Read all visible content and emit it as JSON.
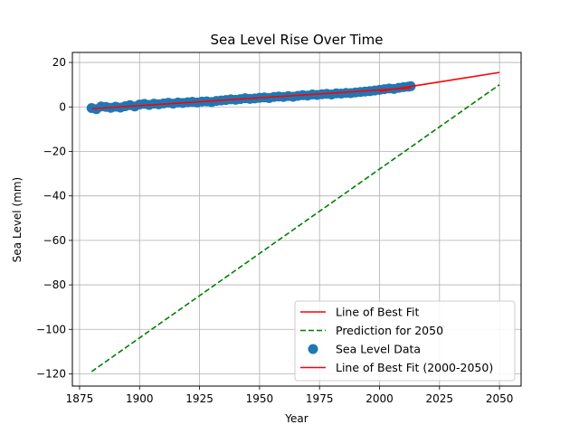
{
  "chart_data": {
    "type": "scatter",
    "title": "Sea Level Rise Over Time",
    "xlabel": "Year",
    "ylabel": "Sea Level (mm)",
    "xlim": [
      1872,
      2059
    ],
    "ylim": [
      -125.5,
      24.5
    ],
    "x_ticks": [
      1875,
      1900,
      1925,
      1950,
      1975,
      2000,
      2025,
      2050
    ],
    "y_ticks": [
      20,
      0,
      -20,
      -40,
      -60,
      -80,
      -100,
      -120
    ],
    "grid": true,
    "legend_position": "lower-right",
    "series": [
      {
        "name": "Line of Best Fit",
        "kind": "line",
        "color": "#ff0000",
        "style": "solid",
        "x": [
          1880,
          2013
        ],
        "y": [
          -0.8,
          8.5
        ]
      },
      {
        "name": "Prediction for 2050",
        "kind": "line",
        "color": "#008000",
        "style": "dashed",
        "x": [
          1880,
          2050
        ],
        "y": [
          -119,
          10
        ]
      },
      {
        "name": "Sea Level Data",
        "kind": "scatter",
        "color": "#1f77b4",
        "x": [
          1880,
          1882,
          1884,
          1886,
          1888,
          1890,
          1892,
          1894,
          1896,
          1898,
          1900,
          1902,
          1904,
          1906,
          1908,
          1910,
          1912,
          1914,
          1916,
          1918,
          1920,
          1922,
          1924,
          1926,
          1928,
          1930,
          1932,
          1934,
          1936,
          1938,
          1940,
          1942,
          1944,
          1946,
          1948,
          1950,
          1952,
          1954,
          1956,
          1958,
          1960,
          1962,
          1964,
          1966,
          1968,
          1970,
          1972,
          1974,
          1976,
          1978,
          1980,
          1982,
          1984,
          1986,
          1988,
          1990,
          1992,
          1994,
          1996,
          1998,
          2000,
          2002,
          2004,
          2006,
          2008,
          2010,
          2012,
          2013
        ],
        "y": [
          -0.5,
          -1.0,
          0.2,
          0.0,
          -0.4,
          0.1,
          -0.3,
          0.3,
          0.8,
          0.2,
          1.1,
          1.4,
          0.9,
          1.5,
          1.2,
          1.6,
          1.9,
          1.5,
          2.0,
          1.8,
          2.1,
          2.3,
          2.0,
          2.4,
          2.5,
          2.2,
          2.7,
          2.9,
          3.1,
          3.4,
          3.2,
          3.5,
          3.9,
          3.6,
          3.8,
          4.1,
          4.3,
          4.0,
          4.5,
          4.7,
          4.5,
          4.9,
          4.6,
          5.0,
          5.3,
          5.1,
          5.6,
          5.4,
          5.7,
          5.9,
          5.6,
          6.1,
          6.0,
          6.3,
          6.2,
          6.5,
          6.7,
          6.9,
          7.1,
          7.4,
          7.7,
          8.0,
          8.3,
          8.1,
          8.6,
          8.9,
          9.1,
          9.3
        ]
      },
      {
        "name": "Line of Best Fit (2000-2050)",
        "kind": "line",
        "color": "#ff0000",
        "style": "solid",
        "x": [
          2000,
          2050
        ],
        "y": [
          7.0,
          15.5
        ]
      }
    ]
  }
}
